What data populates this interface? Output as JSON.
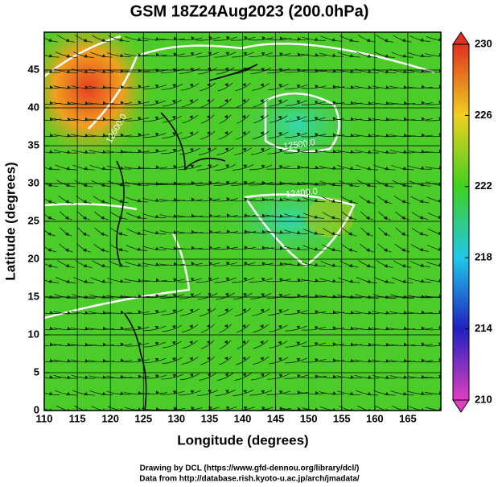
{
  "chart_data": {
    "type": "map",
    "title": "GSM 18Z24Aug2023 (200.0hPa)",
    "xlabel": "Longitude (degrees)",
    "ylabel": "Latitude  (degrees)",
    "xlim": [
      110,
      170
    ],
    "xticks": [
      110,
      115,
      120,
      125,
      130,
      135,
      140,
      145,
      150,
      155,
      160,
      165
    ],
    "ylim": [
      0,
      50
    ],
    "yticks": [
      0,
      5,
      10,
      15,
      20,
      25,
      30,
      35,
      40,
      45
    ],
    "grid": true,
    "colorbar": {
      "lim": [
        210,
        230
      ],
      "ticks": [
        210,
        214,
        218,
        222,
        226,
        230
      ]
    },
    "contour_labels": [
      "12500.0",
      "12400.0",
      "12600.0"
    ],
    "credits": [
      "Drawing by DCL (https://www.gfd-dennou.org/library/dcl/)",
      "Data from http://database.rish.kyoto-u.ac.jp/arch/jmadata/"
    ]
  }
}
